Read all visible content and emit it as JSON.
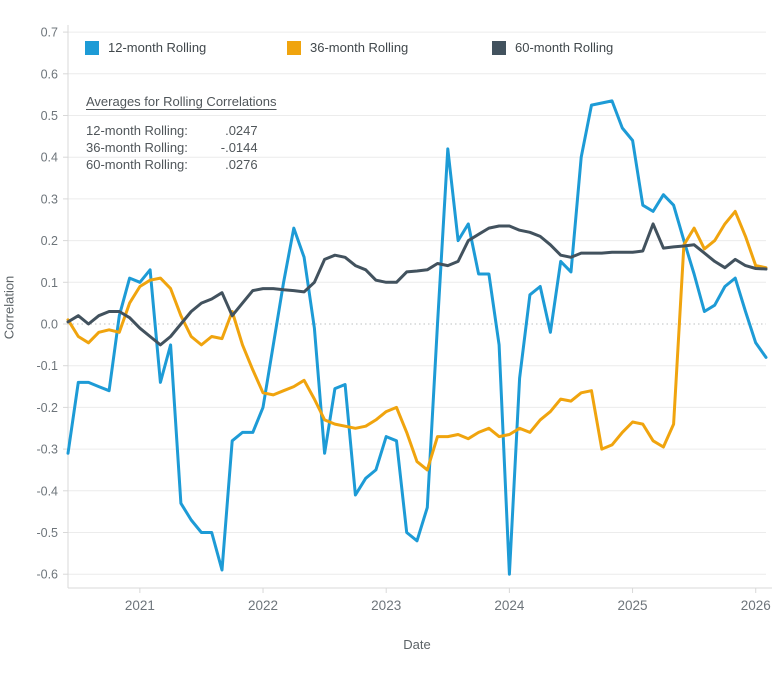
{
  "axes": {
    "y_title": "Correlation",
    "x_title": "Date"
  },
  "annotation": {
    "title": "Averages for Rolling Correlations",
    "lines": [
      {
        "label": "12-month Rolling:",
        "value": ".0247"
      },
      {
        "label": "36-month Rolling:",
        "value": "-.0144"
      },
      {
        "label": "60-month Rolling:",
        "value": ".0276"
      }
    ]
  },
  "style": {
    "gridline_color": "#ececec",
    "zero_line_color": "#bcc0c2",
    "axis_line_color": "#d8d8d8",
    "tick_label_color": "#6e757b",
    "line_width": 3
  },
  "chart_data": {
    "type": "line",
    "title": "",
    "xlabel": "Date",
    "ylabel": "Correlation",
    "x_frequency": "monthly",
    "x_start": "2020-06",
    "x_end": "2026-02",
    "x_count": 69,
    "x_tick_labels": [
      "2021",
      "2022",
      "2023",
      "2024",
      "2025",
      "2026"
    ],
    "y_ticks": [
      0.7,
      0.6,
      0.5,
      0.4,
      0.3,
      0.2,
      0.1,
      0.0,
      -0.1,
      -0.2,
      -0.3,
      -0.4,
      -0.5,
      -0.6
    ],
    "ylim": [
      -0.63,
      0.72
    ],
    "grid": "horizontal gridlines each 0.1, dotted line at zero, no vertical gridlines",
    "legend_position": "top inside plot",
    "series": [
      {
        "name": "12-month Rolling",
        "color": "#1d9bd6",
        "values": [
          -0.31,
          -0.14,
          -0.14,
          -0.15,
          -0.16,
          0.02,
          0.11,
          0.1,
          0.13,
          -0.14,
          -0.05,
          -0.43,
          -0.47,
          -0.5,
          -0.5,
          -0.59,
          -0.28,
          -0.26,
          -0.26,
          -0.2,
          -0.05,
          0.1,
          0.23,
          0.16,
          -0.01,
          -0.31,
          -0.155,
          -0.145,
          -0.41,
          -0.37,
          -0.35,
          -0.27,
          -0.28,
          -0.5,
          -0.52,
          -0.44,
          0.0,
          0.42,
          0.2,
          0.24,
          0.12,
          0.12,
          -0.05,
          -0.6,
          -0.13,
          0.07,
          0.09,
          -0.02,
          0.15,
          0.125,
          0.4,
          0.525,
          0.53,
          0.535,
          0.47,
          0.44,
          0.285,
          0.27,
          0.31,
          0.285,
          0.2,
          0.12,
          0.03,
          0.045,
          0.09,
          0.11,
          0.03,
          -0.045,
          -0.08
        ]
      },
      {
        "name": "36-month Rolling",
        "color": "#f0a40e",
        "values": [
          0.01,
          -0.03,
          -0.045,
          -0.02,
          -0.014,
          -0.02,
          0.05,
          0.09,
          0.105,
          0.11,
          0.085,
          0.02,
          -0.03,
          -0.05,
          -0.03,
          -0.035,
          0.03,
          -0.05,
          -0.11,
          -0.165,
          -0.17,
          -0.16,
          -0.15,
          -0.135,
          -0.18,
          -0.23,
          -0.24,
          -0.245,
          -0.25,
          -0.245,
          -0.23,
          -0.21,
          -0.2,
          -0.26,
          -0.33,
          -0.35,
          -0.27,
          -0.27,
          -0.265,
          -0.275,
          -0.26,
          -0.25,
          -0.27,
          -0.265,
          -0.25,
          -0.26,
          -0.23,
          -0.21,
          -0.18,
          -0.185,
          -0.165,
          -0.16,
          -0.3,
          -0.29,
          -0.26,
          -0.235,
          -0.24,
          -0.28,
          -0.295,
          -0.24,
          0.19,
          0.23,
          0.18,
          0.2,
          0.24,
          0.27,
          0.21,
          0.14,
          0.135
        ]
      },
      {
        "name": "60-month Rolling",
        "color": "#42525e",
        "values": [
          0.005,
          0.02,
          0.0,
          0.02,
          0.03,
          0.03,
          0.015,
          -0.01,
          -0.03,
          -0.05,
          -0.03,
          0.0,
          0.03,
          0.05,
          0.06,
          0.075,
          0.02,
          0.05,
          0.08,
          0.085,
          0.085,
          0.082,
          0.08,
          0.077,
          0.1,
          0.155,
          0.165,
          0.16,
          0.14,
          0.13,
          0.105,
          0.1,
          0.1,
          0.125,
          0.127,
          0.13,
          0.145,
          0.14,
          0.15,
          0.2,
          0.215,
          0.23,
          0.235,
          0.235,
          0.225,
          0.22,
          0.21,
          0.19,
          0.165,
          0.16,
          0.17,
          0.17,
          0.17,
          0.172,
          0.172,
          0.172,
          0.175,
          0.24,
          0.182,
          0.185,
          0.187,
          0.19,
          0.17,
          0.15,
          0.135,
          0.155,
          0.14,
          0.133,
          0.132
        ]
      }
    ]
  }
}
